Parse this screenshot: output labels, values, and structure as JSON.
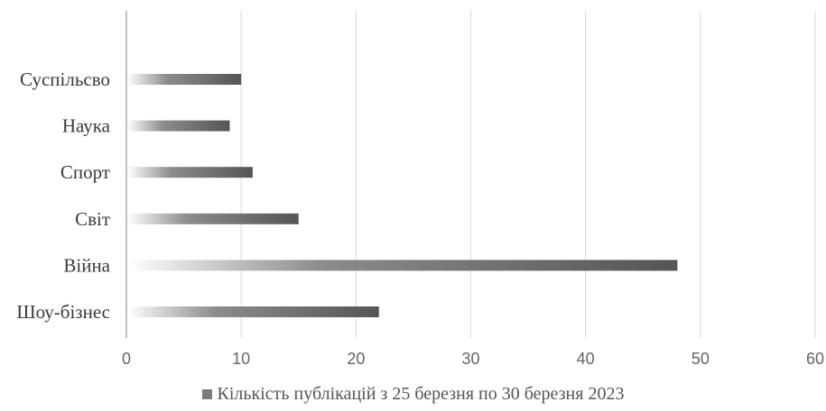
{
  "chart_data": {
    "type": "bar",
    "orientation": "horizontal",
    "title": "",
    "categories": [
      "Суспільсво",
      "Наука",
      "Спорт",
      "Світ",
      "Війна",
      "Шоу-бізнес"
    ],
    "series": [
      {
        "name": "Кількість публікацій з 25 березня по 30 березня 2023",
        "values": [
          10,
          9,
          11,
          15,
          48,
          22
        ]
      }
    ],
    "xlim": [
      0,
      60
    ],
    "x_ticks": [
      0,
      10,
      20,
      30,
      40,
      50,
      60
    ],
    "grid": true,
    "legend_position": "bottom",
    "colors": {
      "bar_start": "#ffffff",
      "bar_mid": "#8c8c8c",
      "bar_end": "#555555",
      "grid": "#d9d9d9",
      "axis": "#bfbfbf"
    }
  }
}
